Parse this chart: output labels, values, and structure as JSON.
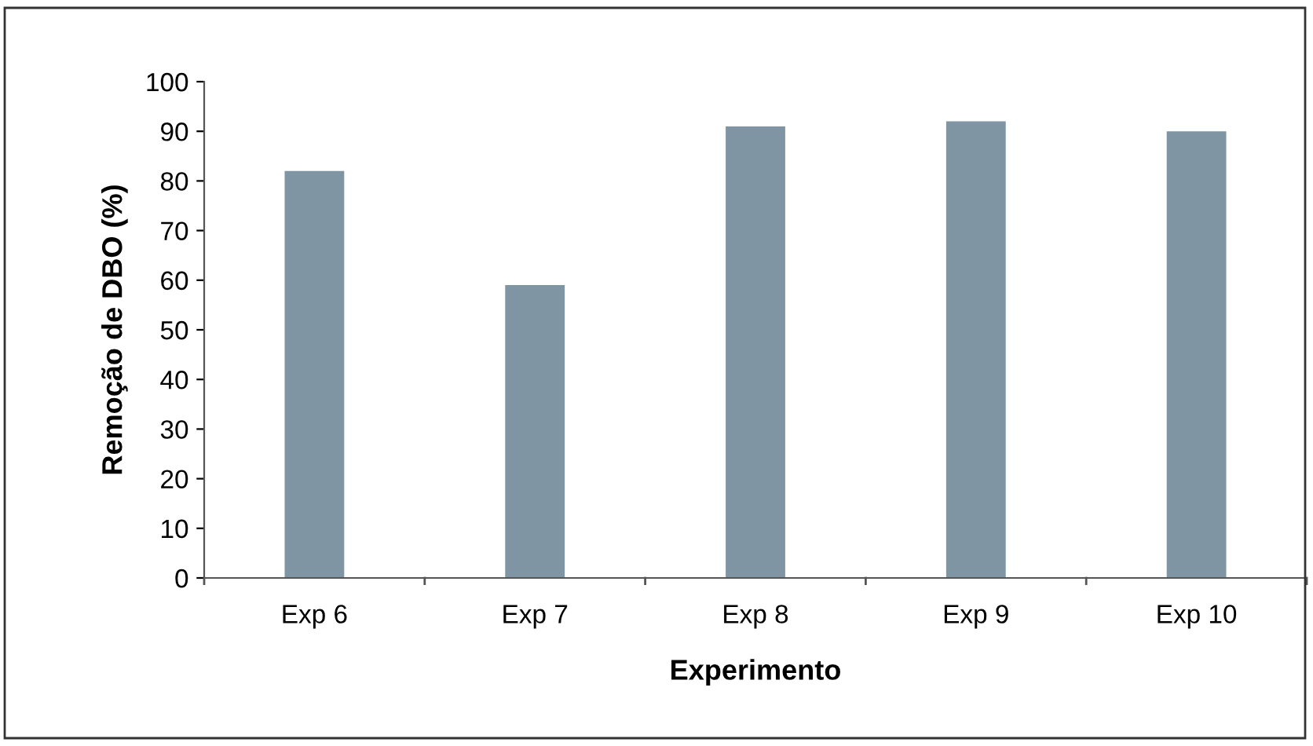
{
  "chart_data": {
    "type": "bar",
    "xlabel": "Experimento",
    "ylabel": "Remoção de DBO (%)",
    "categories": [
      "Exp 6",
      "Exp 7",
      "Exp 8",
      "Exp 9",
      "Exp 10"
    ],
    "values": [
      82,
      59,
      91,
      92,
      90
    ],
    "color": "#7f95a3",
    "ylim": [
      0,
      100
    ],
    "yticks": [
      0,
      10,
      20,
      30,
      40,
      50,
      60,
      70,
      80,
      90,
      100
    ],
    "grid": false,
    "legend": false
  }
}
